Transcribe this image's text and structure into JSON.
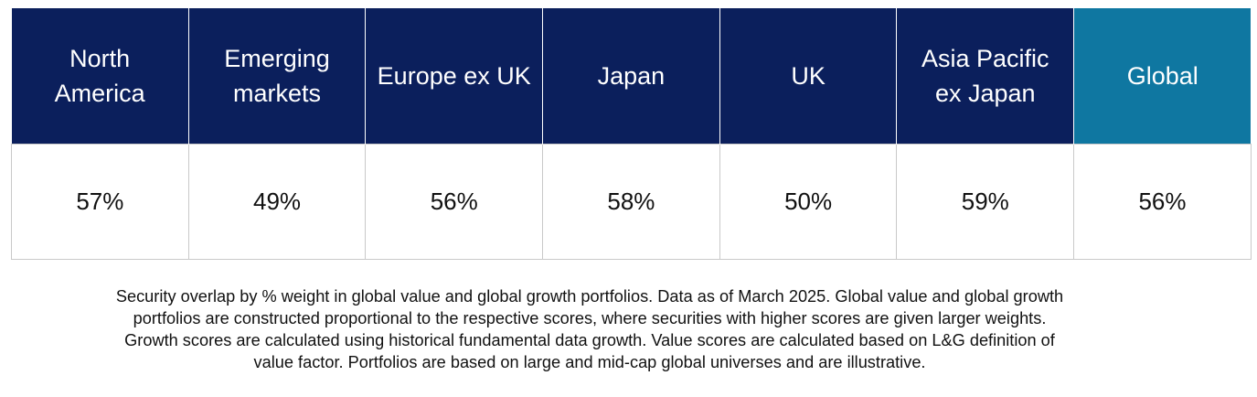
{
  "chart_data": {
    "type": "table",
    "columns": [
      {
        "name": "North America",
        "header_lines": [
          "North",
          "America"
        ],
        "value": 57,
        "display": "57%",
        "highlight": false
      },
      {
        "name": "Emerging markets",
        "header_lines": [
          "Emerging",
          "markets"
        ],
        "value": 49,
        "display": "49%",
        "highlight": false
      },
      {
        "name": "Europe ex UK",
        "header_lines": [
          "Europe ex UK"
        ],
        "value": 56,
        "display": "56%",
        "highlight": false
      },
      {
        "name": "Japan",
        "header_lines": [
          "Japan"
        ],
        "value": 58,
        "display": "58%",
        "highlight": false
      },
      {
        "name": "UK",
        "header_lines": [
          "UK"
        ],
        "value": 50,
        "display": "50%",
        "highlight": false
      },
      {
        "name": "Asia Pacific ex Japan",
        "header_lines": [
          "Asia Pacific",
          "ex Japan"
        ],
        "value": 59,
        "display": "59%",
        "highlight": false
      },
      {
        "name": "Global",
        "header_lines": [
          "Global"
        ],
        "value": 56,
        "display": "56%",
        "highlight": true
      }
    ],
    "unit": "%"
  },
  "caption": {
    "lines": [
      "Security overlap by % weight in global value and global growth portfolios. Data as of March 2025. Global value and global growth",
      "portfolios are constructed proportional to the respective scores, where securities with higher scores are given larger weights.",
      "Growth scores are calculated using historical fundamental data growth. Value scores are calculated based on L&G definition of",
      "value factor. Portfolios are based on large and mid-cap global universes and are illustrative."
    ]
  },
  "colors": {
    "header_navy": "#0b1f5c",
    "header_global": "#0f77a1",
    "cell_border": "#c9c9c9",
    "header_text": "#ffffff",
    "body_text": "#111111"
  }
}
